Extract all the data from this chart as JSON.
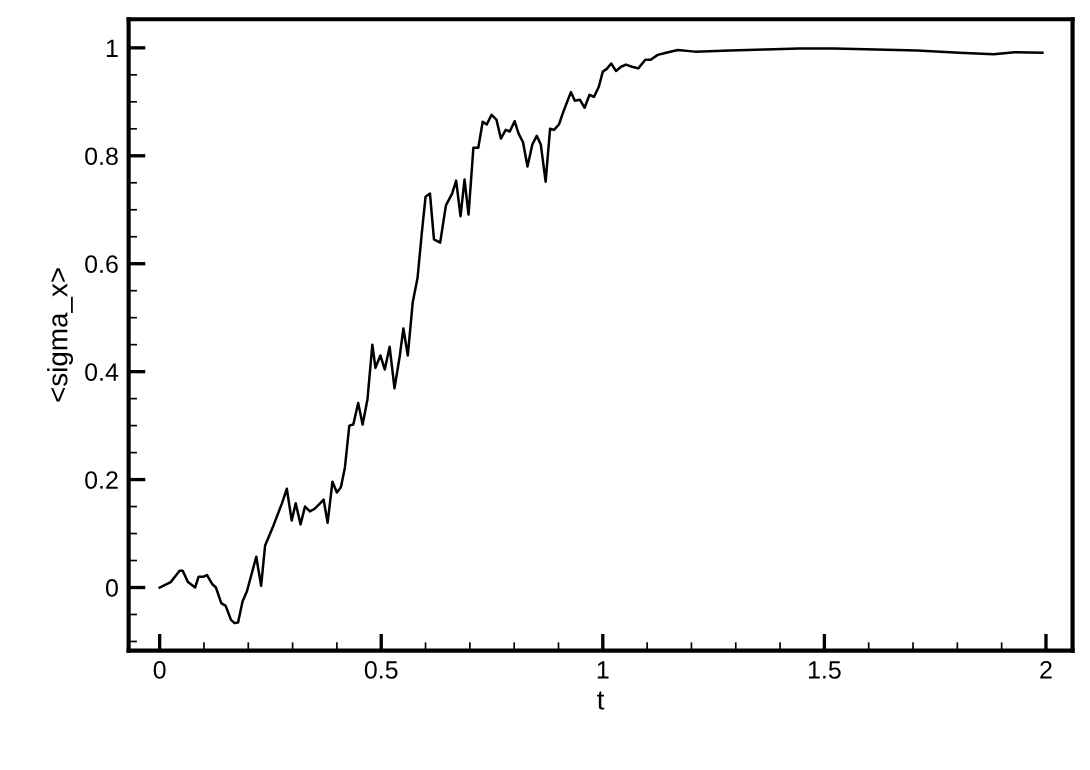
{
  "chart_data": {
    "type": "line",
    "xlabel": "t",
    "ylabel": "<sigma_x>",
    "xlim": [
      -0.07,
      2.06
    ],
    "ylim": [
      -0.117,
      1.053
    ],
    "xticks": [
      0,
      0.5,
      1,
      1.5,
      2
    ],
    "yticks": [
      0,
      0.2,
      0.4,
      0.6,
      0.8,
      1
    ],
    "grid": false,
    "legend": false,
    "marker": "none",
    "line_style": "solid",
    "series": [
      {
        "color": "#000000",
        "x": [
          0,
          0.025,
          0.045,
          0.052,
          0.064,
          0.08,
          0.088,
          0.099,
          0.107,
          0.118,
          0.127,
          0.139,
          0.149,
          0.161,
          0.169,
          0.177,
          0.187,
          0.197,
          0.218,
          0.229,
          0.238,
          0.255,
          0.276,
          0.287,
          0.298,
          0.307,
          0.318,
          0.328,
          0.339,
          0.35,
          0.362,
          0.37,
          0.379,
          0.39,
          0.4,
          0.409,
          0.418,
          0.428,
          0.437,
          0.448,
          0.458,
          0.469,
          0.48,
          0.487,
          0.498,
          0.508,
          0.519,
          0.53,
          0.542,
          0.55,
          0.56,
          0.571,
          0.582,
          0.591,
          0.6,
          0.61,
          0.619,
          0.633,
          0.646,
          0.66,
          0.669,
          0.679,
          0.688,
          0.697,
          0.708,
          0.719,
          0.729,
          0.738,
          0.749,
          0.76,
          0.77,
          0.781,
          0.79,
          0.801,
          0.81,
          0.82,
          0.83,
          0.841,
          0.851,
          0.86,
          0.871,
          0.881,
          0.89,
          0.901,
          0.912,
          0.928,
          0.937,
          0.948,
          0.959,
          0.97,
          0.98,
          0.991,
          1.0,
          1.009,
          1.019,
          1.03,
          1.041,
          1.052,
          1.066,
          1.08,
          1.096,
          1.108,
          1.124,
          1.143,
          1.169,
          1.208,
          1.287,
          1.365,
          1.444,
          1.522,
          1.616,
          1.71,
          1.804,
          1.882,
          1.929,
          1.992
        ],
        "values": [
          0,
          0.01,
          0.031,
          0.031,
          0.01,
          0,
          0.02,
          0.02,
          0.023,
          0.007,
          0,
          -0.029,
          -0.034,
          -0.06,
          -0.066,
          -0.065,
          -0.026,
          -0.007,
          0.057,
          0.003,
          0.078,
          0.111,
          0.156,
          0.183,
          0.124,
          0.156,
          0.117,
          0.15,
          0.141,
          0.146,
          0.156,
          0.163,
          0.12,
          0.196,
          0.176,
          0.186,
          0.222,
          0.3,
          0.302,
          0.342,
          0.302,
          0.349,
          0.45,
          0.407,
          0.43,
          0.404,
          0.446,
          0.369,
          0.43,
          0.48,
          0.43,
          0.528,
          0.574,
          0.652,
          0.724,
          0.73,
          0.645,
          0.639,
          0.708,
          0.73,
          0.754,
          0.688,
          0.756,
          0.691,
          0.815,
          0.815,
          0.863,
          0.858,
          0.876,
          0.867,
          0.832,
          0.848,
          0.845,
          0.864,
          0.841,
          0.825,
          0.78,
          0.821,
          0.837,
          0.821,
          0.752,
          0.85,
          0.848,
          0.858,
          0.884,
          0.918,
          0.902,
          0.904,
          0.889,
          0.913,
          0.909,
          0.928,
          0.956,
          0.961,
          0.971,
          0.957,
          0.965,
          0.969,
          0.965,
          0.962,
          0.978,
          0.978,
          0.987,
          0.991,
          0.996,
          0.993,
          0.995,
          0.997,
          0.999,
          0.999,
          0.997,
          0.995,
          0.991,
          0.988,
          0.992,
          0.991
        ]
      }
    ]
  }
}
